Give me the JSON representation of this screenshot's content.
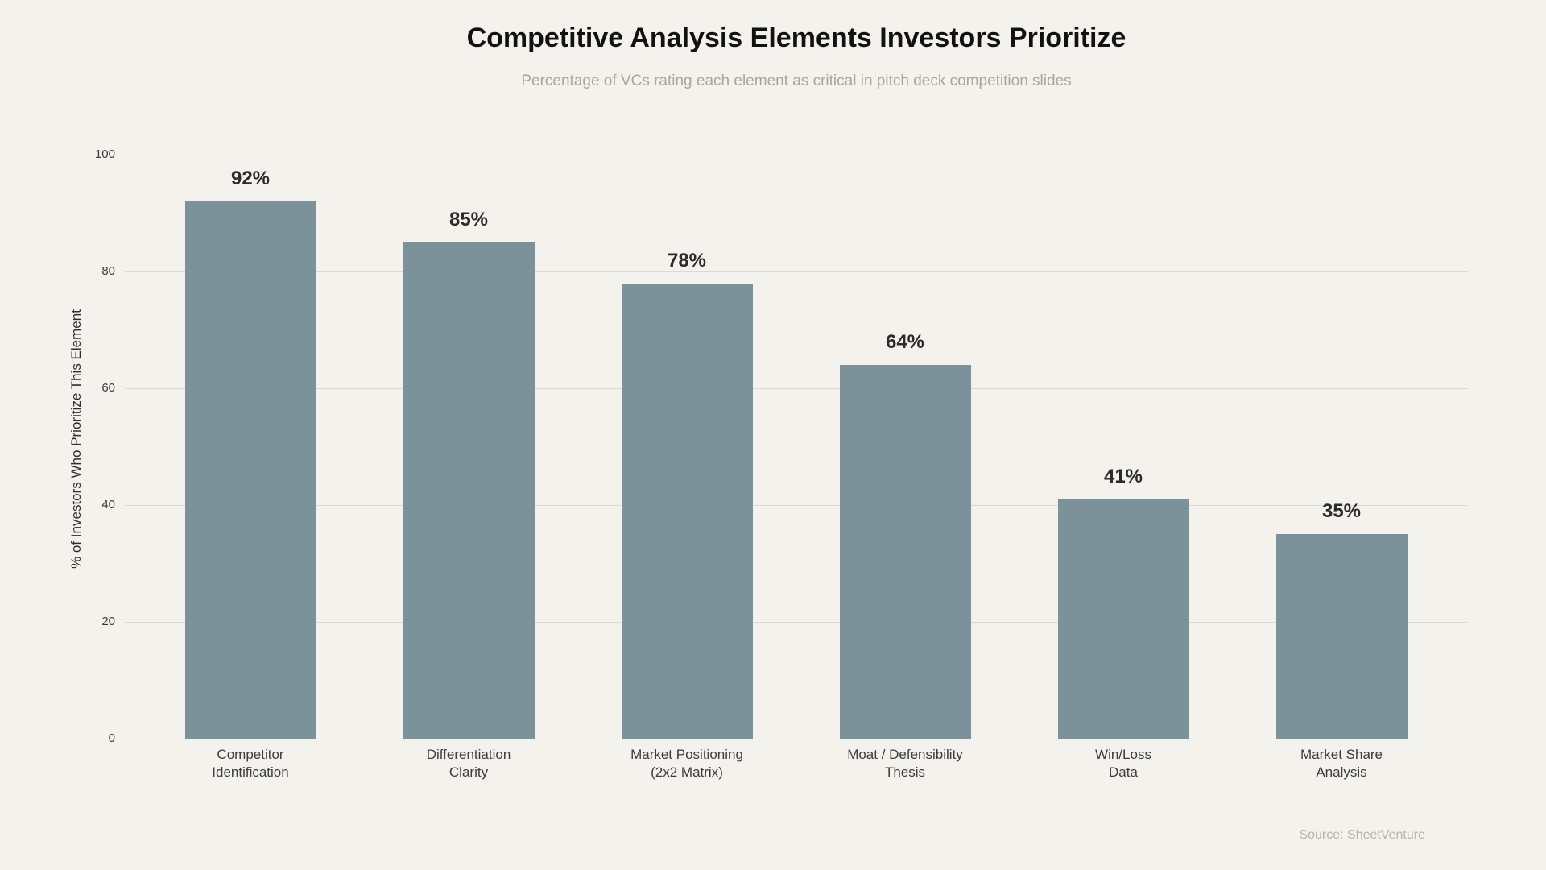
{
  "chart_data": {
    "type": "bar",
    "title": "Competitive Analysis Elements Investors Prioritize",
    "subtitle": "Percentage of VCs rating each element as critical in pitch deck competition slides",
    "categories": [
      "Competitor\nIdentification",
      "Differentiation\nClarity",
      "Market Positioning\n(2x2 Matrix)",
      "Moat / Defensibility\nThesis",
      "Win/Loss\nData",
      "Market Share\nAnalysis"
    ],
    "values": [
      92,
      85,
      78,
      64,
      41,
      35
    ],
    "value_labels": [
      "92%",
      "85%",
      "78%",
      "64%",
      "41%",
      "35%"
    ],
    "xlabel": "",
    "ylabel": "% of Investors Who Prioritize This Element",
    "ylim": [
      0,
      100
    ],
    "yticks": [
      0,
      20,
      40,
      60,
      80,
      100
    ],
    "grid": "horizontal",
    "legend": "none",
    "bar_color": "#7c929a",
    "background_color": "#f4f2ed",
    "gridline_color": "#dbd9d3",
    "source": "Source: SheetVenture"
  }
}
